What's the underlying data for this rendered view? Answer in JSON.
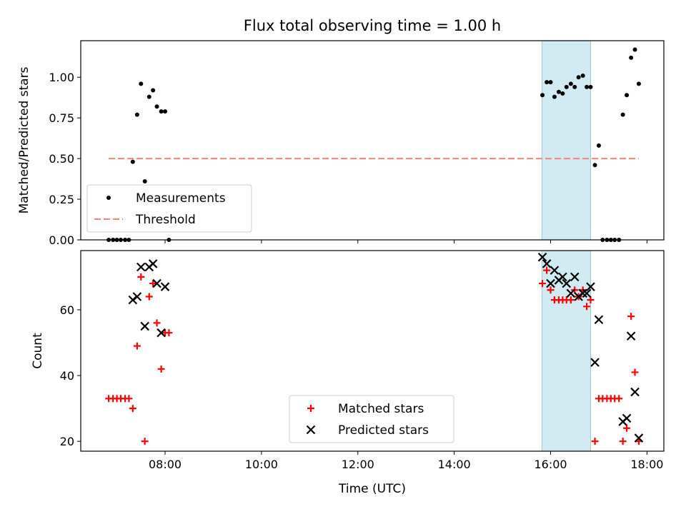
{
  "title": "Flux total observing time = 1.00 h",
  "chart_data": [
    {
      "type": "scatter",
      "ylabel": "Matched/Predicted stars",
      "xlim_hours": [
        6.25,
        18.35
      ],
      "ylim": [
        0,
        1.225
      ],
      "yticks": [
        "0.00",
        "0.25",
        "0.50",
        "0.75",
        "1.00"
      ],
      "xticks": [
        "08:00",
        "10:00",
        "12:00",
        "14:00",
        "16:00",
        "18:00"
      ],
      "shaded_interval_hours": [
        15.82,
        16.83
      ],
      "shade_color": "#add8e6",
      "threshold": {
        "name": "Threshold",
        "y": 0.5,
        "x_range": [
          6.83,
          17.83
        ],
        "color": "#ff7f7f"
      },
      "series": [
        {
          "name": "Measurements",
          "color": "#000000",
          "points": [
            [
              6.83,
              0.0
            ],
            [
              6.92,
              0.0
            ],
            [
              7.0,
              0.0
            ],
            [
              7.08,
              0.0
            ],
            [
              7.17,
              0.0
            ],
            [
              7.25,
              0.0
            ],
            [
              7.33,
              0.48
            ],
            [
              7.42,
              0.77
            ],
            [
              7.5,
              0.96
            ],
            [
              7.58,
              0.36
            ],
            [
              7.67,
              0.88
            ],
            [
              7.75,
              0.92
            ],
            [
              7.83,
              0.82
            ],
            [
              7.92,
              0.79
            ],
            [
              8.0,
              0.79
            ],
            [
              8.08,
              0.0
            ],
            [
              15.83,
              0.89
            ],
            [
              15.92,
              0.97
            ],
            [
              16.0,
              0.97
            ],
            [
              16.08,
              0.88
            ],
            [
              16.17,
              0.91
            ],
            [
              16.25,
              0.9
            ],
            [
              16.33,
              0.94
            ],
            [
              16.42,
              0.96
            ],
            [
              16.5,
              0.94
            ],
            [
              16.58,
              1.0
            ],
            [
              16.67,
              1.01
            ],
            [
              16.75,
              0.94
            ],
            [
              16.83,
              0.94
            ],
            [
              16.92,
              0.46
            ],
            [
              17.0,
              0.58
            ],
            [
              17.08,
              0.0
            ],
            [
              17.17,
              0.0
            ],
            [
              17.25,
              0.0
            ],
            [
              17.33,
              0.0
            ],
            [
              17.42,
              0.0
            ],
            [
              17.5,
              0.77
            ],
            [
              17.58,
              0.89
            ],
            [
              17.67,
              1.12
            ],
            [
              17.75,
              1.17
            ],
            [
              17.83,
              0.96
            ]
          ]
        }
      ],
      "legend_location": "lower left"
    },
    {
      "type": "scatter",
      "ylabel": "Count",
      "xlabel": "Time (UTC)",
      "xlim_hours": [
        6.25,
        18.35
      ],
      "ylim": [
        17,
        78
      ],
      "yticks": [
        "20",
        "40",
        "60"
      ],
      "xticks": [
        "08:00",
        "10:00",
        "12:00",
        "14:00",
        "16:00",
        "18:00"
      ],
      "shaded_interval_hours": [
        15.82,
        16.83
      ],
      "shade_color": "#add8e6",
      "series": [
        {
          "name": "Matched stars",
          "marker": "plus",
          "color": "#ff0000",
          "points": [
            [
              6.83,
              33
            ],
            [
              6.92,
              33
            ],
            [
              7.0,
              33
            ],
            [
              7.08,
              33
            ],
            [
              7.17,
              33
            ],
            [
              7.25,
              33
            ],
            [
              7.33,
              30
            ],
            [
              7.42,
              49
            ],
            [
              7.5,
              70
            ],
            [
              7.58,
              20
            ],
            [
              7.67,
              64
            ],
            [
              7.75,
              68
            ],
            [
              7.83,
              56
            ],
            [
              7.92,
              42
            ],
            [
              8.0,
              53
            ],
            [
              8.08,
              53
            ],
            [
              15.83,
              68
            ],
            [
              15.92,
              72
            ],
            [
              16.0,
              66
            ],
            [
              16.08,
              63
            ],
            [
              16.17,
              63
            ],
            [
              16.25,
              63
            ],
            [
              16.33,
              63
            ],
            [
              16.42,
              63
            ],
            [
              16.5,
              66
            ],
            [
              16.58,
              64
            ],
            [
              16.67,
              66
            ],
            [
              16.75,
              61
            ],
            [
              16.83,
              63
            ],
            [
              16.92,
              20
            ],
            [
              17.0,
              33
            ],
            [
              17.08,
              33
            ],
            [
              17.17,
              33
            ],
            [
              17.25,
              33
            ],
            [
              17.33,
              33
            ],
            [
              17.42,
              33
            ],
            [
              17.5,
              20
            ],
            [
              17.58,
              24
            ],
            [
              17.67,
              58
            ],
            [
              17.75,
              41
            ],
            [
              17.83,
              20
            ]
          ]
        },
        {
          "name": "Predicted stars",
          "marker": "x",
          "color": "#000000",
          "points": [
            [
              7.33,
              63
            ],
            [
              7.42,
              64
            ],
            [
              7.5,
              73
            ],
            [
              7.58,
              55
            ],
            [
              7.67,
              73
            ],
            [
              7.75,
              74
            ],
            [
              7.83,
              68
            ],
            [
              7.92,
              53
            ],
            [
              8.0,
              67
            ],
            [
              15.83,
              76
            ],
            [
              15.92,
              74
            ],
            [
              16.0,
              68
            ],
            [
              16.08,
              72
            ],
            [
              16.17,
              69
            ],
            [
              16.25,
              70
            ],
            [
              16.33,
              68
            ],
            [
              16.42,
              65
            ],
            [
              16.5,
              70
            ],
            [
              16.58,
              64
            ],
            [
              16.67,
              65
            ],
            [
              16.75,
              65
            ],
            [
              16.83,
              67
            ],
            [
              16.92,
              44
            ],
            [
              17.0,
              57
            ],
            [
              17.5,
              26
            ],
            [
              17.58,
              27
            ],
            [
              17.67,
              52
            ],
            [
              17.75,
              35
            ],
            [
              17.83,
              21
            ]
          ]
        }
      ],
      "legend_location": "lower center"
    }
  ]
}
